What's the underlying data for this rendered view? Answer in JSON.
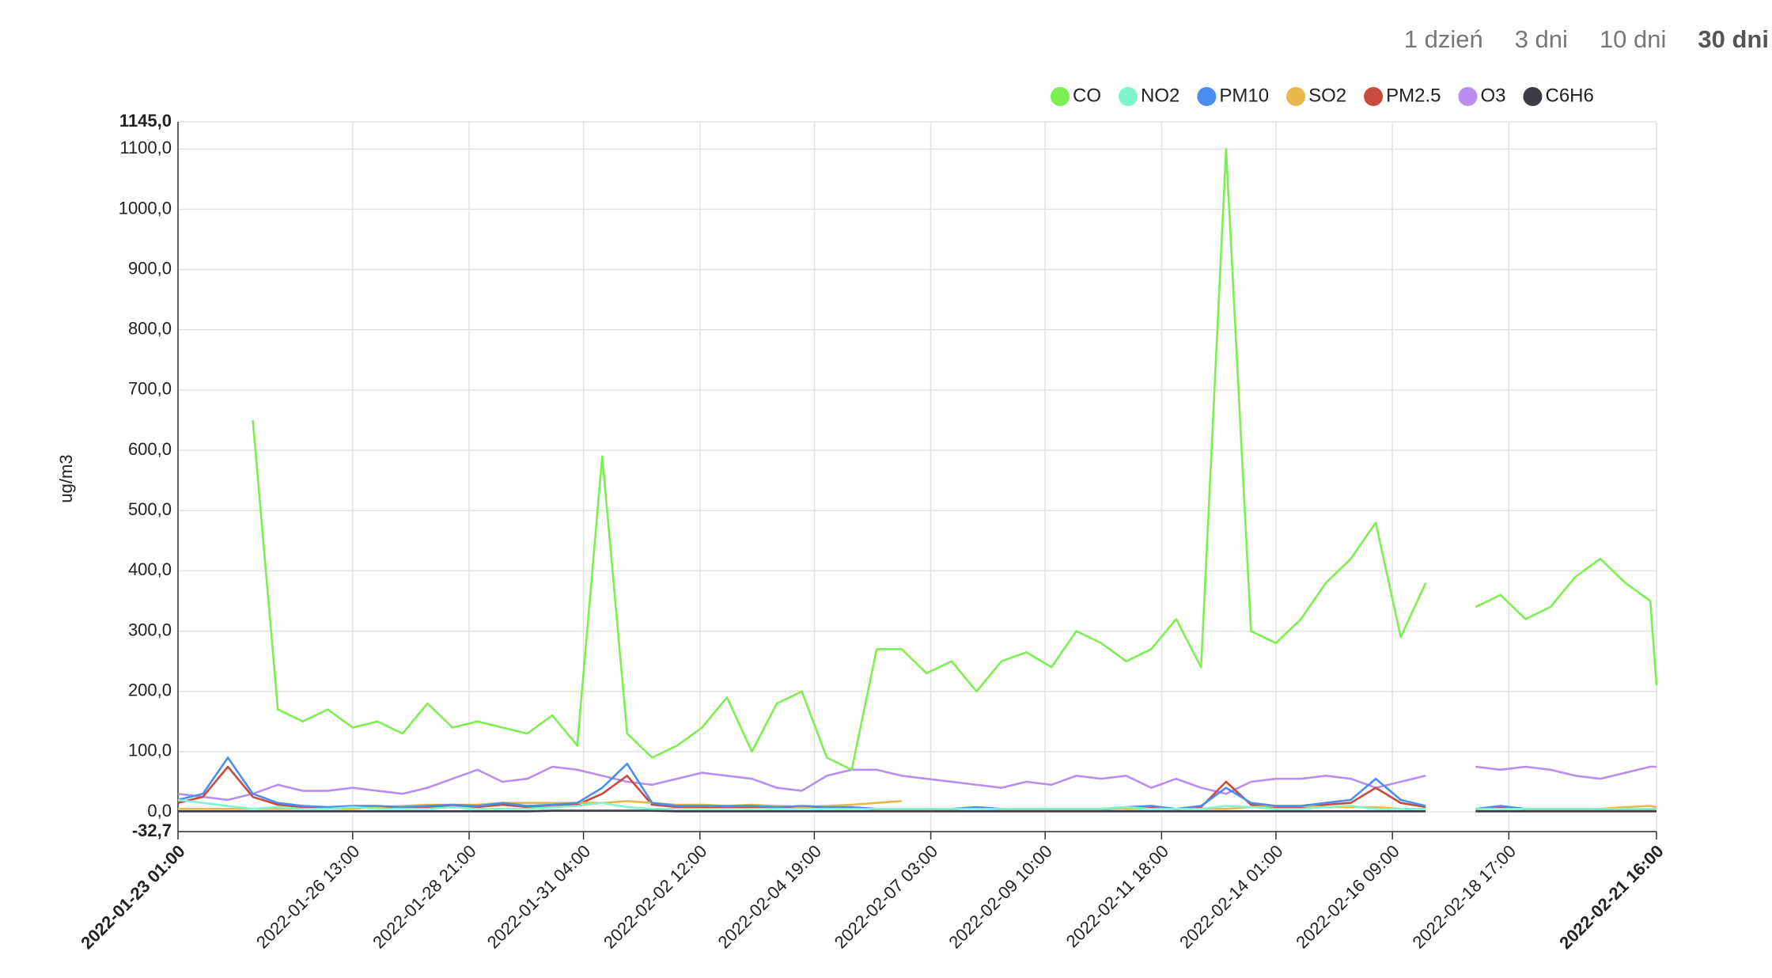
{
  "range_buttons": [
    "1 dzień",
    "3 dni",
    "10 dni",
    "30 dni"
  ],
  "selected_range": 3,
  "chart_data": {
    "type": "line",
    "y_label": "ug/m3",
    "legend": "top-right",
    "grid": true,
    "x": [
      "2022-01-23 01:00",
      "2022-01-23 13:00",
      "2022-01-24 01:00",
      "2022-01-24 13:00",
      "2022-01-25 01:00",
      "2022-01-25 13:00",
      "2022-01-26 01:00",
      "2022-01-26 13:00",
      "2022-01-27 01:00",
      "2022-01-27 13:00",
      "2022-01-28 01:00",
      "2022-01-28 13:00",
      "2022-01-29 01:00",
      "2022-01-29 13:00",
      "2022-01-30 01:00",
      "2022-01-30 13:00",
      "2022-01-31 01:00",
      "2022-01-31 13:00",
      "2022-02-01 01:00",
      "2022-02-01 13:00",
      "2022-02-02 01:00",
      "2022-02-02 13:00",
      "2022-02-03 01:00",
      "2022-02-03 13:00",
      "2022-02-04 01:00",
      "2022-02-04 13:00",
      "2022-02-05 01:00",
      "2022-02-05 13:00",
      "2022-02-06 01:00",
      "2022-02-06 13:00",
      "2022-02-07 01:00",
      "2022-02-07 13:00",
      "2022-02-08 01:00",
      "2022-02-08 13:00",
      "2022-02-09 01:00",
      "2022-02-09 13:00",
      "2022-02-10 01:00",
      "2022-02-10 13:00",
      "2022-02-11 01:00",
      "2022-02-11 13:00",
      "2022-02-12 01:00",
      "2022-02-12 13:00",
      "2022-02-13 01:00",
      "2022-02-13 13:00",
      "2022-02-14 01:00",
      "2022-02-14 13:00",
      "2022-02-15 01:00",
      "2022-02-15 13:00",
      "2022-02-16 01:00",
      "2022-02-16 13:00",
      "2022-02-17 01:00",
      "2022-02-17 13:00",
      "2022-02-18 01:00",
      "2022-02-18 13:00",
      "2022-02-19 01:00",
      "2022-02-19 13:00",
      "2022-02-20 01:00",
      "2022-02-20 13:00",
      "2022-02-21 01:00",
      "2022-02-21 13:00",
      "2022-02-21 16:00"
    ],
    "xlim": [
      "2022-01-23 01:00",
      "2022-02-21 16:00"
    ],
    "xticks": [
      "2022-01-23 01:00",
      "2022-01-26 13:00",
      "2022-01-28 21:00",
      "2022-01-31 04:00",
      "2022-02-02 12:00",
      "2022-02-04 19:00",
      "2022-02-07 03:00",
      "2022-02-09 10:00",
      "2022-02-11 18:00",
      "2022-02-14 01:00",
      "2022-02-16 09:00",
      "2022-02-18 17:00",
      "2022-02-21 16:00"
    ],
    "ylim": [
      -32.7,
      1145.0
    ],
    "yticks": [
      {
        "value": -32.7,
        "label": "-32,7"
      },
      {
        "value": 0,
        "label": "0,0"
      },
      {
        "value": 100,
        "label": "100,0"
      },
      {
        "value": 200,
        "label": "200,0"
      },
      {
        "value": 300,
        "label": "300,0"
      },
      {
        "value": 400,
        "label": "400,0"
      },
      {
        "value": 500,
        "label": "500,0"
      },
      {
        "value": 600,
        "label": "600,0"
      },
      {
        "value": 700,
        "label": "700,0"
      },
      {
        "value": 800,
        "label": "800,0"
      },
      {
        "value": 900,
        "label": "900,0"
      },
      {
        "value": 1000,
        "label": "1000,0"
      },
      {
        "value": 1100,
        "label": "1100,0"
      },
      {
        "value": 1145.0,
        "label": "1145,0"
      }
    ],
    "series": [
      {
        "name": "CO",
        "color": "#7cf050",
        "values": [
          null,
          null,
          null,
          650,
          170,
          150,
          170,
          140,
          150,
          130,
          180,
          140,
          150,
          140,
          130,
          160,
          110,
          590,
          130,
          90,
          110,
          140,
          190,
          100,
          180,
          200,
          90,
          70,
          270,
          270,
          230,
          250,
          200,
          250,
          265,
          240,
          300,
          280,
          250,
          270,
          320,
          240,
          1100,
          300,
          280,
          320,
          380,
          420,
          480,
          290,
          380,
          null,
          340,
          360,
          320,
          340,
          390,
          420,
          380,
          350,
          210
        ]
      },
      {
        "name": "NO2",
        "color": "#7ef5cc",
        "values": [
          20,
          15,
          10,
          5,
          8,
          5,
          5,
          8,
          5,
          5,
          5,
          8,
          5,
          5,
          5,
          8,
          10,
          15,
          8,
          5,
          5,
          5,
          5,
          5,
          5,
          5,
          5,
          5,
          5,
          5,
          5,
          5,
          5,
          5,
          5,
          5,
          5,
          5,
          8,
          5,
          5,
          5,
          10,
          8,
          5,
          5,
          8,
          10,
          5,
          5,
          5,
          null,
          5,
          5,
          5,
          5,
          5,
          5,
          5,
          5,
          5
        ]
      },
      {
        "name": "PM10",
        "color": "#4a8ef0",
        "values": [
          20,
          30,
          90,
          30,
          15,
          10,
          8,
          10,
          10,
          8,
          10,
          12,
          10,
          15,
          10,
          12,
          15,
          40,
          80,
          15,
          10,
          10,
          10,
          10,
          8,
          10,
          8,
          8,
          5,
          5,
          5,
          5,
          8,
          5,
          5,
          5,
          5,
          5,
          8,
          10,
          5,
          10,
          40,
          15,
          10,
          10,
          15,
          20,
          55,
          20,
          10,
          null,
          5,
          10,
          5,
          5,
          5,
          5,
          5,
          5,
          5
        ]
      },
      {
        "name": "SO2",
        "color": "#e8b84a",
        "values": [
          5,
          5,
          5,
          5,
          5,
          5,
          5,
          5,
          8,
          10,
          12,
          12,
          12,
          15,
          15,
          15,
          15,
          15,
          18,
          15,
          12,
          12,
          10,
          12,
          10,
          8,
          10,
          12,
          15,
          18,
          null,
          5,
          5,
          5,
          5,
          5,
          5,
          5,
          5,
          5,
          5,
          5,
          5,
          8,
          10,
          10,
          8,
          8,
          8,
          5,
          5,
          null,
          5,
          5,
          5,
          5,
          5,
          5,
          8,
          10,
          8
        ]
      },
      {
        "name": "PM2.5",
        "color": "#c94a3f",
        "values": [
          15,
          25,
          75,
          25,
          12,
          8,
          6,
          8,
          8,
          6,
          8,
          10,
          8,
          12,
          8,
          10,
          12,
          30,
          60,
          12,
          8,
          8,
          8,
          8,
          6,
          8,
          6,
          6,
          4,
          4,
          4,
          4,
          6,
          4,
          4,
          4,
          4,
          4,
          6,
          8,
          4,
          8,
          50,
          12,
          8,
          8,
          12,
          15,
          40,
          15,
          8,
          null,
          4,
          8,
          4,
          4,
          4,
          4,
          4,
          4,
          4
        ]
      },
      {
        "name": "O3",
        "color": "#b88ef0",
        "values": [
          30,
          25,
          20,
          30,
          45,
          35,
          35,
          40,
          35,
          30,
          40,
          55,
          70,
          50,
          55,
          75,
          70,
          60,
          50,
          45,
          55,
          65,
          60,
          55,
          40,
          35,
          60,
          70,
          70,
          60,
          55,
          50,
          45,
          40,
          50,
          45,
          60,
          55,
          60,
          40,
          55,
          40,
          30,
          50,
          55,
          55,
          60,
          55,
          40,
          50,
          60,
          null,
          75,
          70,
          75,
          70,
          60,
          55,
          65,
          75,
          75
        ]
      },
      {
        "name": "C6H6",
        "color": "#3c3c44",
        "values": [
          1,
          1,
          1,
          1,
          1,
          1,
          1,
          1,
          1,
          1,
          1,
          1,
          1,
          1,
          1,
          2,
          2,
          2,
          2,
          2,
          1,
          1,
          1,
          1,
          1,
          1,
          1,
          1,
          1,
          1,
          1,
          1,
          1,
          1,
          1,
          1,
          1,
          1,
          1,
          1,
          1,
          1,
          1,
          1,
          1,
          1,
          1,
          1,
          1,
          1,
          1,
          null,
          1,
          1,
          1,
          1,
          1,
          1,
          1,
          1,
          1
        ]
      }
    ]
  }
}
